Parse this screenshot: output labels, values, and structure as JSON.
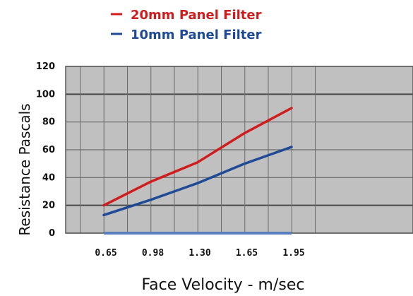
{
  "chart_data": {
    "type": "line",
    "title": "",
    "xlabel": "Face Velocity - m/sec",
    "ylabel": "Resistance Pascals",
    "categories": [
      "0.65",
      "0.98",
      "1.30",
      "1.65",
      "1.95"
    ],
    "ylim": [
      0,
      120
    ],
    "yticks": [
      "0",
      "20",
      "40",
      "60",
      "80",
      "100",
      "120"
    ],
    "grid": true,
    "legend_position": "top",
    "plot_background": "#c0c0c0",
    "series": [
      {
        "name": "20mm Panel Filter",
        "color": "#d01c1c",
        "values": [
          20,
          37,
          51,
          72,
          90
        ]
      },
      {
        "name": "10mm Panel Filter",
        "color": "#1f4a96",
        "values": [
          13,
          24,
          36,
          50,
          62
        ]
      }
    ]
  }
}
